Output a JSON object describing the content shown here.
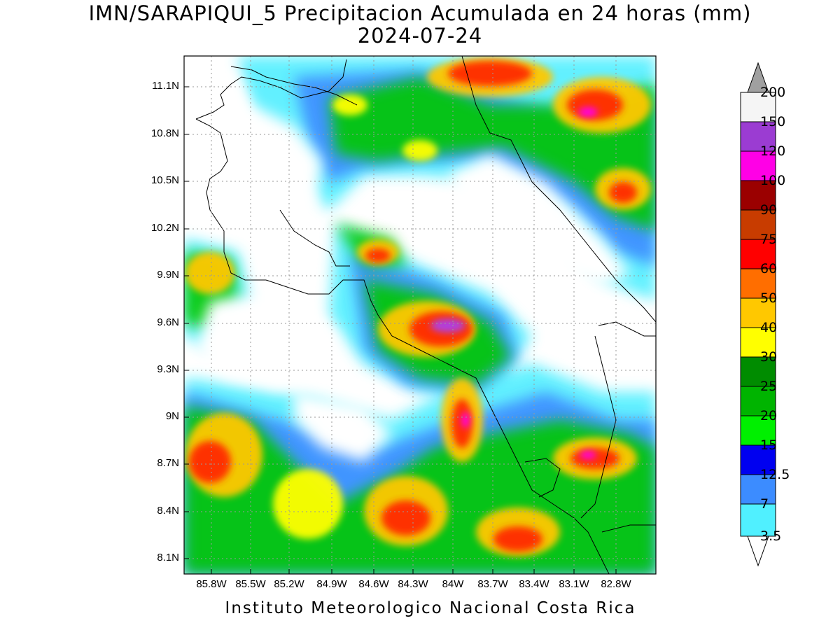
{
  "title": {
    "line1": "IMN/SARAPIQUI_5 Precipitacion Acumulada en 24 horas (mm)",
    "line2": "2024-07-24"
  },
  "y_axis_labels": [
    "11.1N",
    "10.8N",
    "10.5N",
    "10.2N",
    "9.9N",
    "9.6N",
    "9.3N",
    "9N",
    "8.7N",
    "8.4N",
    "8.1N"
  ],
  "x_axis_labels": [
    "85.8W",
    "85.5W",
    "85.2W",
    "84.9W",
    "84.6W",
    "84.3W",
    "84W",
    "83.7W",
    "83.4W",
    "83.1W",
    "82.8W"
  ],
  "map_extent": {
    "lon_min": -86.0,
    "lon_max": -82.6,
    "lat_min": 8.0,
    "lat_max": 11.3
  },
  "colorbar": {
    "labels": [
      "200",
      "150",
      "120",
      "100",
      "90",
      "75",
      "60",
      "50",
      "40",
      "30",
      "25",
      "20",
      "15",
      "12.5",
      "7",
      "3.5"
    ],
    "colors": [
      "#f5f5f5",
      "#9b3cd2",
      "#ff00e6",
      "#9b0000",
      "#c83c00",
      "#ff0000",
      "#ff6e00",
      "#ffc800",
      "#ffff00",
      "#008c00",
      "#00b400",
      "#00f000",
      "#0000f0",
      "#3c8cff",
      "#50f0ff"
    ],
    "upper_arrow_color": "#a0a0a0",
    "lower_arrow_color": "#ffffff"
  },
  "footer": "Instituto Meteorologico Nacional Costa Rica"
}
